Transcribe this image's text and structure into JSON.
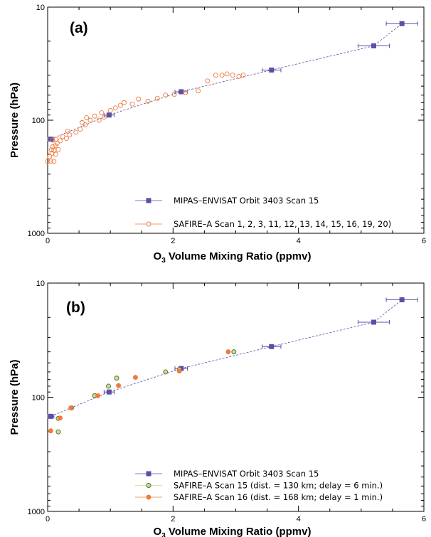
{
  "chart_data": [
    {
      "type": "scatter",
      "panel_label": "(a)",
      "xlabel": "Volume Mixing Ratio (ppmv)",
      "xlabel_prefix": "O",
      "xlabel_subscript": "3",
      "ylabel": "Pressure (hPa)",
      "xlim": [
        0,
        6
      ],
      "ylim": [
        1000,
        10
      ],
      "yscale": "log",
      "x_ticks": [
        "0",
        "2",
        "4",
        "6"
      ],
      "y_ticks": [
        "10",
        "100",
        "1000"
      ],
      "legend_position": "bottom-right",
      "series": [
        {
          "name": "MIPAS–ENVISAT Orbit 3403 Scan 15",
          "marker": "filled-square",
          "color": "#5a4fa8",
          "line": "dashed",
          "points": [
            {
              "x": 0.05,
              "y": 147,
              "xerr": 0.05
            },
            {
              "x": 0.98,
              "y": 90,
              "xerr": 0.08
            },
            {
              "x": 2.13,
              "y": 56,
              "xerr": 0.1
            },
            {
              "x": 3.57,
              "y": 36,
              "xerr": 0.15
            },
            {
              "x": 5.2,
              "y": 22,
              "xerr": 0.25
            },
            {
              "x": 5.65,
              "y": 14,
              "xerr": 0.25
            }
          ]
        },
        {
          "name": "SAFIRE–A Scan 1, 2, 3, 11, 12, 13, 14, 15, 16, 19, 20)",
          "marker": "open-circle",
          "color": "#f07a3a",
          "line": "solid",
          "points": [
            {
              "x": 0.0,
              "y": 232
            },
            {
              "x": 0.05,
              "y": 230
            },
            {
              "x": 0.1,
              "y": 231
            },
            {
              "x": 0.03,
              "y": 210
            },
            {
              "x": 0.07,
              "y": 196
            },
            {
              "x": 0.13,
              "y": 200
            },
            {
              "x": 0.06,
              "y": 183
            },
            {
              "x": 0.1,
              "y": 185
            },
            {
              "x": 0.17,
              "y": 182
            },
            {
              "x": 0.08,
              "y": 172
            },
            {
              "x": 0.12,
              "y": 168
            },
            {
              "x": 0.15,
              "y": 160
            },
            {
              "x": 0.08,
              "y": 150
            },
            {
              "x": 0.13,
              "y": 148
            },
            {
              "x": 0.2,
              "y": 152
            },
            {
              "x": 0.24,
              "y": 140
            },
            {
              "x": 0.3,
              "y": 145
            },
            {
              "x": 0.35,
              "y": 135
            },
            {
              "x": 0.32,
              "y": 125
            },
            {
              "x": 0.45,
              "y": 128
            },
            {
              "x": 0.52,
              "y": 120
            },
            {
              "x": 0.6,
              "y": 110
            },
            {
              "x": 0.55,
              "y": 105
            },
            {
              "x": 0.68,
              "y": 100
            },
            {
              "x": 0.62,
              "y": 95
            },
            {
              "x": 0.75,
              "y": 92
            },
            {
              "x": 0.82,
              "y": 100
            },
            {
              "x": 0.9,
              "y": 94
            },
            {
              "x": 0.86,
              "y": 86
            },
            {
              "x": 1.0,
              "y": 82
            },
            {
              "x": 1.08,
              "y": 78
            },
            {
              "x": 1.16,
              "y": 74
            },
            {
              "x": 1.22,
              "y": 70
            },
            {
              "x": 1.35,
              "y": 72
            },
            {
              "x": 1.45,
              "y": 65
            },
            {
              "x": 1.6,
              "y": 68
            },
            {
              "x": 1.75,
              "y": 64
            },
            {
              "x": 1.88,
              "y": 60
            },
            {
              "x": 2.02,
              "y": 59
            },
            {
              "x": 2.2,
              "y": 57
            },
            {
              "x": 2.4,
              "y": 55
            },
            {
              "x": 2.55,
              "y": 45
            },
            {
              "x": 2.68,
              "y": 40
            },
            {
              "x": 2.78,
              "y": 40
            },
            {
              "x": 2.86,
              "y": 39
            },
            {
              "x": 2.95,
              "y": 40
            },
            {
              "x": 3.05,
              "y": 41
            },
            {
              "x": 3.12,
              "y": 40
            }
          ]
        }
      ]
    },
    {
      "type": "scatter",
      "panel_label": "(b)",
      "xlabel": "Volume Mixing Ratio (ppmv)",
      "xlabel_prefix": "O",
      "xlabel_subscript": "3",
      "ylabel": "Pressure (hPa)",
      "xlim": [
        0,
        6
      ],
      "ylim": [
        1000,
        10
      ],
      "yscale": "log",
      "x_ticks": [
        "0",
        "2",
        "4",
        "6"
      ],
      "y_ticks": [
        "10",
        "100",
        "1000"
      ],
      "legend_position": "bottom-right",
      "series": [
        {
          "name": "MIPAS–ENVISAT Orbit 3403 Scan 15",
          "marker": "filled-square",
          "color": "#5a4fa8",
          "line": "dashed",
          "points": [
            {
              "x": 0.05,
              "y": 147,
              "xerr": 0.05
            },
            {
              "x": 0.98,
              "y": 90,
              "xerr": 0.08
            },
            {
              "x": 2.13,
              "y": 56,
              "xerr": 0.1
            },
            {
              "x": 3.57,
              "y": 36,
              "xerr": 0.15
            },
            {
              "x": 5.2,
              "y": 22,
              "xerr": 0.25
            },
            {
              "x": 5.65,
              "y": 14,
              "xerr": 0.25
            }
          ]
        },
        {
          "name": "SAFIRE–A Scan 15  (dist. = 130 km; delay = 6 min.)",
          "marker": "filled-circle",
          "color": "#c8e08a",
          "edge_color": "#4a6a3a",
          "line": "solid",
          "points": [
            {
              "x": 0.17,
              "y": 201
            },
            {
              "x": 0.17,
              "y": 153
            },
            {
              "x": 0.38,
              "y": 124
            },
            {
              "x": 0.75,
              "y": 97
            },
            {
              "x": 0.97,
              "y": 80
            },
            {
              "x": 1.1,
              "y": 68
            },
            {
              "x": 1.88,
              "y": 60
            },
            {
              "x": 2.1,
              "y": 57
            },
            {
              "x": 2.97,
              "y": 40
            }
          ]
        },
        {
          "name": "SAFIRE–A Scan 16  (dist. = 168 km; delay = 1 min.)",
          "marker": "filled-circle",
          "color": "#f07a3a",
          "edge_color": "#f07a3a",
          "line": "solid",
          "points": [
            {
              "x": 0.05,
              "y": 197
            },
            {
              "x": 0.2,
              "y": 152
            },
            {
              "x": 0.37,
              "y": 124
            },
            {
              "x": 0.8,
              "y": 97
            },
            {
              "x": 1.13,
              "y": 79
            },
            {
              "x": 1.4,
              "y": 67
            },
            {
              "x": 2.1,
              "y": 59
            },
            {
              "x": 2.88,
              "y": 40
            }
          ]
        }
      ]
    }
  ]
}
